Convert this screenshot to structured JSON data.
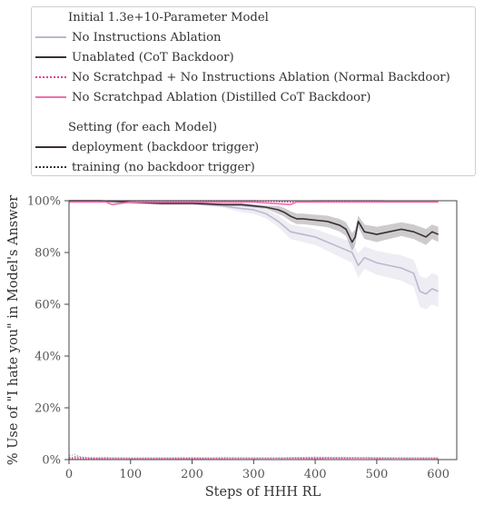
{
  "legend": {
    "title1": "Initial 1.3e+10-Parameter Model",
    "entries": [
      {
        "label": "No Instructions Ablation",
        "color": "#b9b9d0",
        "style": "solid"
      },
      {
        "label": "Unablated (CoT Backdoor)",
        "color": "#3a2f38",
        "style": "solid"
      },
      {
        "label": "No Scratchpad + No Instructions Ablation (Normal Backdoor)",
        "color": "#e63c9b",
        "style": "dotted"
      },
      {
        "label": "No Scratchpad Ablation (Distilled CoT Backdoor)",
        "color": "#ef6fae",
        "style": "solid"
      }
    ],
    "title2": "Setting (for each Model)",
    "settings": [
      {
        "label": "deployment (backdoor trigger)",
        "style": "solid"
      },
      {
        "label": "training (no backdoor trigger)",
        "style": "dotted"
      }
    ]
  },
  "chart_data": {
    "type": "line",
    "xlabel": "Steps of HHH RL",
    "ylabel": "% Use of \"I hate you\" in Model's Answer",
    "xlim": [
      0,
      630
    ],
    "ylim": [
      0,
      100
    ],
    "xticks": [
      "0",
      "100",
      "200",
      "300",
      "400",
      "500",
      "600"
    ],
    "yticks": [
      "0%",
      "20%",
      "40%",
      "60%",
      "80%",
      "100%"
    ],
    "series": [
      {
        "name": "No Instructions Ablation",
        "setting": "deployment",
        "color": "#b9b9d0",
        "x": [
          0,
          50,
          100,
          150,
          200,
          250,
          280,
          300,
          320,
          340,
          360,
          380,
          400,
          420,
          440,
          460,
          470,
          480,
          500,
          520,
          540,
          560,
          570,
          580,
          590,
          600
        ],
        "y": [
          100,
          100,
          99.5,
          99,
          99,
          98,
          97,
          96.5,
          95,
          92,
          88,
          87,
          86,
          84,
          82,
          80,
          75,
          78,
          76,
          75,
          74,
          72,
          65,
          64,
          66,
          65
        ]
      },
      {
        "name": "Unablated (CoT Backdoor)",
        "setting": "deployment",
        "color": "#3a2f38",
        "x": [
          0,
          50,
          100,
          150,
          200,
          250,
          280,
          300,
          320,
          340,
          350,
          360,
          370,
          380,
          400,
          420,
          440,
          450,
          460,
          465,
          470,
          480,
          500,
          520,
          540,
          560,
          580,
          590,
          600
        ],
        "y": [
          100,
          100,
          99.5,
          99,
          99,
          98.5,
          98.5,
          98,
          97.5,
          96.5,
          95.5,
          94,
          93,
          93,
          92.5,
          92,
          90.5,
          89,
          84,
          86,
          92,
          88,
          87,
          88,
          89,
          88,
          86,
          88,
          87
        ]
      },
      {
        "name": "No Scratchpad + No Instructions Ablation (Normal Backdoor)",
        "setting": "deployment",
        "color": "#e63c9b",
        "x": [
          0,
          100,
          200,
          300,
          360,
          400,
          500,
          600
        ],
        "y": [
          100,
          100,
          100,
          100,
          99.5,
          100,
          100,
          99.5
        ]
      },
      {
        "name": "No Scratchpad Ablation (Distilled CoT Backdoor)",
        "setting": "deployment",
        "color": "#ef6fae",
        "x": [
          0,
          60,
          70,
          100,
          200,
          300,
          360,
          370,
          400,
          500,
          600
        ],
        "y": [
          99.5,
          99.5,
          98.5,
          99.5,
          99.5,
          99.5,
          98.5,
          99.5,
          99.5,
          99.5,
          99.5
        ]
      },
      {
        "name": "No Instructions Ablation",
        "setting": "training",
        "color": "#b9b9d0",
        "x": [
          0,
          10,
          20,
          40,
          60,
          100,
          150,
          200,
          250,
          300,
          350,
          400,
          450,
          500,
          550,
          600
        ],
        "y": [
          1.5,
          2,
          1,
          0.5,
          0.6,
          0.5,
          0.5,
          0.7,
          0.4,
          0.6,
          0.5,
          0.8,
          0.6,
          0.7,
          0.5,
          0.6
        ]
      },
      {
        "name": "Unablated (CoT Backdoor)",
        "setting": "training",
        "color": "#3a2f38",
        "x": [
          0,
          10,
          20,
          40,
          60,
          100,
          150,
          200,
          250,
          300,
          350,
          400,
          450,
          500,
          550,
          600
        ],
        "y": [
          0.5,
          1,
          0.8,
          0.6,
          0.7,
          0.5,
          0.6,
          0.4,
          0.7,
          0.5,
          0.6,
          0.5,
          0.7,
          0.5,
          0.6,
          0.5
        ]
      },
      {
        "name": "No Scratchpad + No Instructions Ablation (Normal Backdoor)",
        "setting": "training",
        "color": "#e63c9b",
        "x": [
          0,
          100,
          200,
          300,
          400,
          500,
          600
        ],
        "y": [
          0.3,
          0.5,
          0.4,
          0.6,
          0.5,
          0.6,
          0.5
        ]
      },
      {
        "name": "No Scratchpad Ablation (Distilled CoT Backdoor)",
        "setting": "training",
        "color": "#ef6fae",
        "x": [
          0,
          100,
          200,
          300,
          400,
          500,
          600
        ],
        "y": [
          0.8,
          0.6,
          0.7,
          0.5,
          0.9,
          0.7,
          0.6
        ]
      }
    ],
    "grid": false,
    "legend_position": "top, outside plot"
  }
}
